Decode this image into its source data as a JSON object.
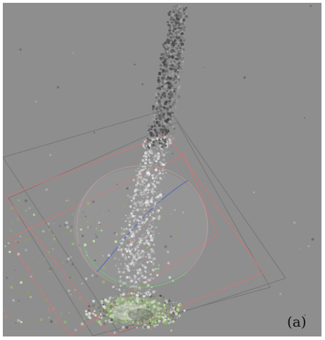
{
  "figure": {
    "panel_label": "(a)",
    "colors": {
      "background": "#8e8e8e",
      "bounding_box_red": "#c77b7b",
      "bounding_box_gray": "#727272",
      "sphere_green": "#6fbf7c",
      "sphere_blue": "#5c6fb6",
      "points_dark": "#404040",
      "points_light": "#d8d8d8",
      "points_green": "#b7d88a"
    }
  }
}
